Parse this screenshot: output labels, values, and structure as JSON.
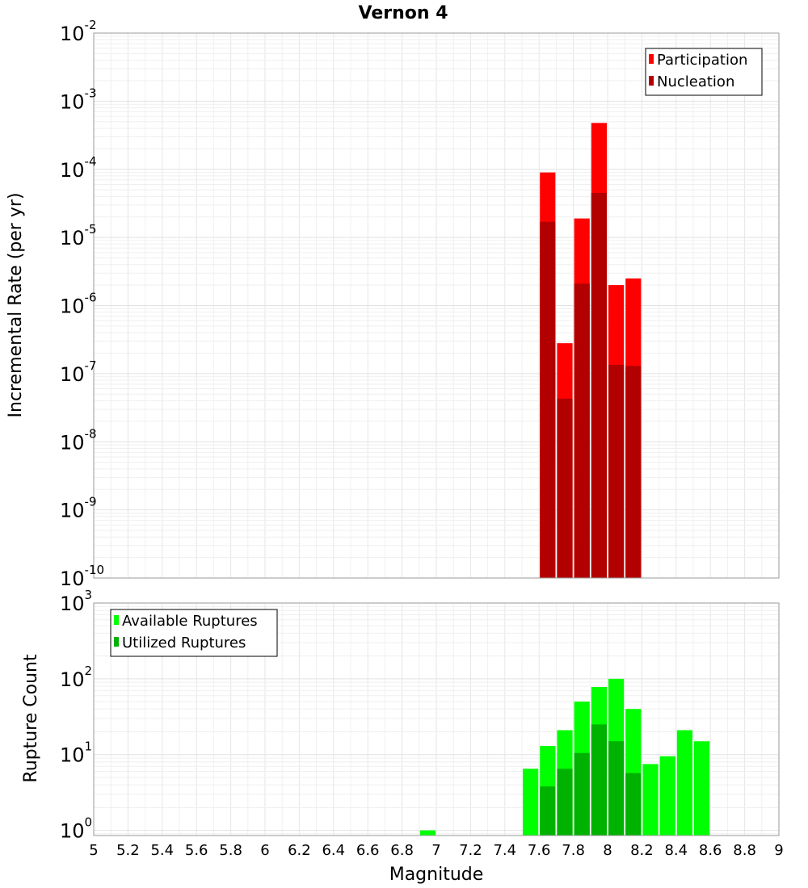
{
  "chart_data": {
    "type": "bar",
    "title": "Vernon 4",
    "xlabel": "Magnitude",
    "xlim": [
      5,
      9
    ],
    "x_ticks": [
      "5",
      "5.2",
      "5.4",
      "5.6",
      "5.8",
      "6",
      "6.2",
      "6.4",
      "6.6",
      "6.8",
      "7",
      "7.2",
      "7.4",
      "7.6",
      "7.8",
      "8",
      "8.2",
      "8.4",
      "8.6",
      "8.8",
      "9"
    ],
    "bin_width": 0.1,
    "panels": [
      {
        "name": "rates",
        "ylabel": "Incremental Rate (per yr)",
        "yscale": "log",
        "ylim_exp": [
          -10,
          -2
        ],
        "y_ticks": [
          {
            "base": "10",
            "exp": "-2"
          },
          {
            "base": "10",
            "exp": "-3"
          },
          {
            "base": "10",
            "exp": "-4"
          },
          {
            "base": "10",
            "exp": "-5"
          },
          {
            "base": "10",
            "exp": "-6"
          },
          {
            "base": "10",
            "exp": "-7"
          },
          {
            "base": "10",
            "exp": "-8"
          },
          {
            "base": "10",
            "exp": "-9"
          },
          {
            "base": "10",
            "exp": "-10"
          }
        ],
        "legend": {
          "position": "top-right",
          "entries": [
            "Participation",
            "Nucleation"
          ]
        },
        "series": [
          {
            "name": "Participation",
            "color": "#ff0000",
            "x": [
              7.65,
              7.75,
              7.85,
              7.95,
              8.05,
              8.15
            ],
            "values": [
              9e-05,
              2.8e-07,
              1.9e-05,
              0.00048,
              2e-06,
              2.5e-06
            ]
          },
          {
            "name": "Nucleation",
            "color": "#b20000",
            "x": [
              7.65,
              7.75,
              7.85,
              7.95,
              8.05,
              8.15
            ],
            "values": [
              1.7e-05,
              4.3e-08,
              2.1e-06,
              4.5e-05,
              1.35e-07,
              1.3e-07
            ]
          }
        ]
      },
      {
        "name": "counts",
        "ylabel": "Rupture Count",
        "yscale": "log",
        "ylim_exp": [
          -0.068,
          3
        ],
        "y_ticks": [
          {
            "base": "10",
            "exp": "3"
          },
          {
            "base": "10",
            "exp": "2"
          },
          {
            "base": "10",
            "exp": "1"
          },
          {
            "base": "10",
            "exp": "0"
          }
        ],
        "legend": {
          "position": "top-left",
          "entries": [
            "Available Ruptures",
            "Utilized Ruptures"
          ]
        },
        "series": [
          {
            "name": "Available Ruptures",
            "color": "#00ff00",
            "x": [
              6.95,
              7.55,
              7.65,
              7.75,
              7.85,
              7.95,
              8.05,
              8.15,
              8.25,
              8.35,
              8.45,
              8.55
            ],
            "values": [
              1,
              6.5,
              13,
              21,
              50,
              78,
              100,
              40,
              7.5,
              9.5,
              21,
              15
            ]
          },
          {
            "name": "Utilized Ruptures",
            "color": "#00b200",
            "x": [
              7.65,
              7.75,
              7.85,
              7.95,
              8.05,
              8.15
            ],
            "values": [
              3.8,
              6.5,
              10.5,
              25,
              15,
              5.7
            ]
          }
        ]
      }
    ]
  }
}
